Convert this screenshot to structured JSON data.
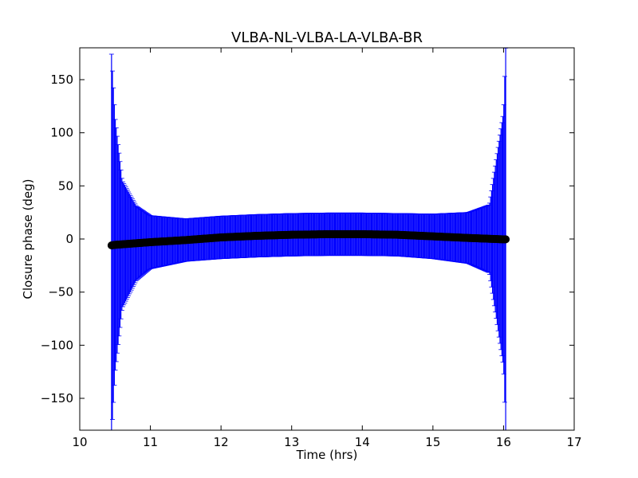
{
  "chart_data": {
    "type": "scatter",
    "title": "VLBA-NL-VLBA-LA-VLBA-BR",
    "xlabel": "Time (hrs)",
    "ylabel": "Closure phase (deg)",
    "xlim": [
      10,
      17
    ],
    "ylim": [
      -180,
      180
    ],
    "xticks": [
      "10",
      "11",
      "12",
      "13",
      "14",
      "15",
      "16",
      "17"
    ],
    "yticks": [
      "−150",
      "−100",
      "−50",
      "0",
      "50",
      "100",
      "150"
    ],
    "grid": false,
    "series": [
      {
        "marker": "circle",
        "color": "#000000",
        "errorbar_color": "#0000ff",
        "x_range": [
          10.45,
          16.03
        ],
        "x": [
          10.45,
          10.5,
          10.6,
          10.8,
          11.0,
          11.5,
          12.0,
          12.5,
          13.0,
          13.5,
          14.0,
          14.5,
          15.0,
          15.5,
          15.8,
          16.0,
          16.03
        ],
        "y": [
          -6,
          -5.5,
          -5,
          -4,
          -3,
          -1,
          1.5,
          3,
          4,
          4.5,
          4.5,
          4,
          2.5,
          1,
          0.2,
          -0.3,
          -0.3
        ],
        "err": [
          180,
          120,
          60,
          35,
          25,
          20,
          20,
          20,
          20,
          20,
          20,
          20,
          21,
          24,
          32,
          120,
          180
        ]
      }
    ]
  }
}
